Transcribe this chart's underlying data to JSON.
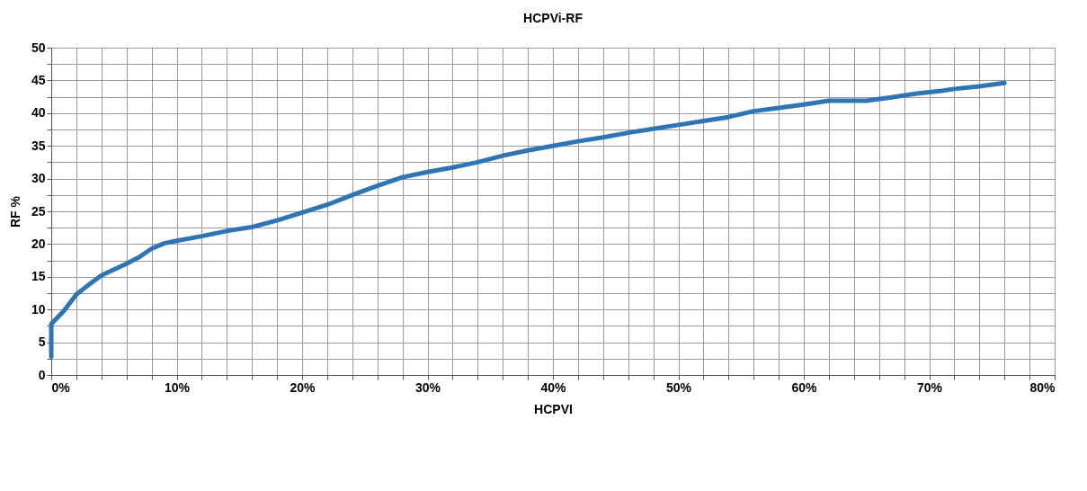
{
  "chart_data": {
    "type": "line",
    "title": "HCPVi-RF",
    "xlabel": "HCPVI",
    "ylabel": "RF %",
    "series": [
      {
        "color": "#2e75b6",
        "x": [
          0,
          0,
          1,
          2,
          3,
          4,
          5,
          6,
          7,
          8,
          9,
          10,
          12,
          14,
          16,
          18,
          20,
          22,
          24,
          26,
          28,
          30,
          32,
          34,
          36,
          38,
          40,
          42,
          44,
          46,
          48,
          50,
          52,
          54,
          56,
          58,
          60,
          62,
          65,
          67,
          69,
          71,
          72,
          74,
          76
        ],
        "values": [
          2.8,
          7.8,
          9.8,
          12.3,
          13.8,
          15.2,
          16.1,
          17,
          18,
          19.3,
          20.1,
          20.5,
          21.2,
          22,
          22.6,
          23.6,
          24.8,
          26,
          27.5,
          28.9,
          30.2,
          31,
          31.7,
          32.5,
          33.5,
          34.3,
          35,
          35.7,
          36.3,
          37,
          37.6,
          38.2,
          38.8,
          39.4,
          40.3,
          40.8,
          41.3,
          41.9,
          41.9,
          42.4,
          43,
          43.4,
          43.7,
          44.1,
          44.6
        ]
      }
    ],
    "xlim": [
      0,
      80
    ],
    "xticks": [
      {
        "value": 0,
        "label": "0%"
      },
      {
        "value": 2,
        "label": null
      },
      {
        "value": 4,
        "label": null
      },
      {
        "value": 6,
        "label": null
      },
      {
        "value": 8,
        "label": null
      },
      {
        "value": 10,
        "label": "10%"
      },
      {
        "value": 12,
        "label": null
      },
      {
        "value": 14,
        "label": null
      },
      {
        "value": 16,
        "label": null
      },
      {
        "value": 18,
        "label": null
      },
      {
        "value": 20,
        "label": "20%"
      },
      {
        "value": 22,
        "label": null
      },
      {
        "value": 24,
        "label": null
      },
      {
        "value": 26,
        "label": null
      },
      {
        "value": 28,
        "label": null
      },
      {
        "value": 30,
        "label": "30%"
      },
      {
        "value": 32,
        "label": null
      },
      {
        "value": 34,
        "label": null
      },
      {
        "value": 36,
        "label": null
      },
      {
        "value": 38,
        "label": null
      },
      {
        "value": 40,
        "label": "40%"
      },
      {
        "value": 42,
        "label": null
      },
      {
        "value": 44,
        "label": null
      },
      {
        "value": 46,
        "label": null
      },
      {
        "value": 48,
        "label": null
      },
      {
        "value": 50,
        "label": "50%"
      },
      {
        "value": 52,
        "label": null
      },
      {
        "value": 54,
        "label": null
      },
      {
        "value": 56,
        "label": null
      },
      {
        "value": 58,
        "label": null
      },
      {
        "value": 60,
        "label": "60%"
      },
      {
        "value": 62,
        "label": null
      },
      {
        "value": 64,
        "label": null
      },
      {
        "value": 66,
        "label": null
      },
      {
        "value": 68,
        "label": null
      },
      {
        "value": 70,
        "label": "70%"
      },
      {
        "value": 72,
        "label": null
      },
      {
        "value": 74,
        "label": null
      },
      {
        "value": 76,
        "label": null
      },
      {
        "value": 78,
        "label": null
      },
      {
        "value": 80,
        "label": "80%"
      }
    ],
    "ylim": [
      0,
      50
    ],
    "yticks": [
      0,
      {
        "value": 2.5,
        "label": null
      },
      5,
      {
        "value": 7.5,
        "label": null
      },
      10,
      {
        "value": 12.5,
        "label": null
      },
      15,
      {
        "value": 17.5,
        "label": null
      },
      20,
      {
        "value": 22.5,
        "label": null
      },
      25,
      {
        "value": 27.5,
        "label": null
      },
      30,
      {
        "value": 32.5,
        "label": null
      },
      35,
      {
        "value": 37.5,
        "label": null
      },
      40,
      {
        "value": 42.5,
        "label": null
      },
      45,
      {
        "value": 47.5,
        "label": null
      },
      50
    ],
    "grid": true,
    "marker": "none",
    "line_style": "solid"
  }
}
